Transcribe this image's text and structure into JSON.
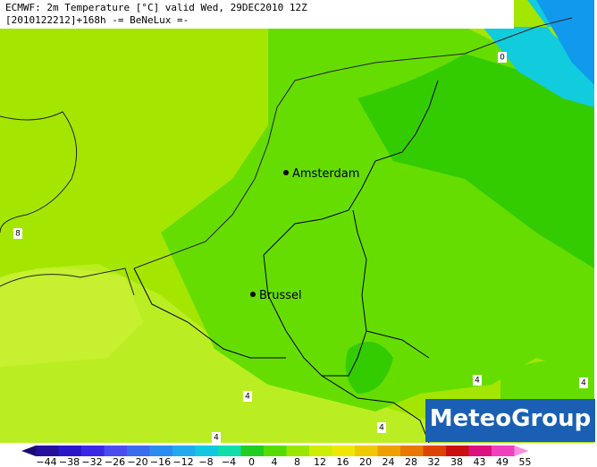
{
  "header": {
    "line1": "ECMWF: 2m Temperature [°C] valid Wed, 29DEC2010 12Z",
    "line2": "[2010122212]+168h -= BeNeLux =-"
  },
  "cities": [
    "Amsterdam",
    "Brussel"
  ],
  "contour_labels": [
    "0",
    "8",
    "4",
    "4",
    "4",
    "4",
    "4"
  ],
  "logo": "MeteoGroup",
  "colorbar": {
    "labels": [
      "−44",
      "−38",
      "−32",
      "−26",
      "−20",
      "−16",
      "−12",
      "−8",
      "−4",
      "0",
      "4",
      "8",
      "12",
      "16",
      "20",
      "24",
      "28",
      "32",
      "38",
      "43",
      "49",
      "55"
    ],
    "colors": [
      "#1a0a6e",
      "#22109a",
      "#2a18c8",
      "#3a28e8",
      "#4a4cf0",
      "#3a6cf0",
      "#2a8cf0",
      "#22aaee",
      "#11c8e0",
      "#11ddaa",
      "#22cc22",
      "#55dd00",
      "#99e600",
      "#ccee00",
      "#eee800",
      "#f0c800",
      "#eea000",
      "#e87800",
      "#dd4400",
      "#cc1010",
      "#dd1080",
      "#f040c0",
      "#f890e0"
    ]
  }
}
